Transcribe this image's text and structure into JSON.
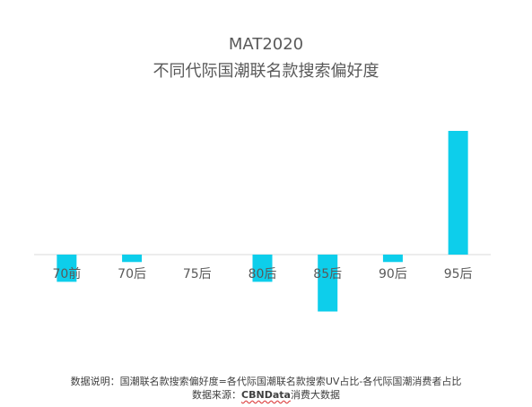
{
  "chart_data": {
    "type": "bar",
    "title_line1": "MAT2020",
    "title_line2": "不同代际国潮联名款搜索偏好度",
    "categories": [
      "70前",
      "70后",
      "75后",
      "80后",
      "85后",
      "90后",
      "95后"
    ],
    "values": [
      -0.11,
      -0.03,
      0,
      -0.11,
      -0.23,
      -0.03,
      0.5
    ],
    "ylim": [
      -0.25,
      0.55
    ],
    "grid": false,
    "legend": "none",
    "bar_color": "#0DCEEB",
    "axis_color": "#d9d9d9"
  },
  "footnote": {
    "line1": "数据说明：国潮联名款搜索偏好度=各代际国潮联名款搜索UV占比-各代际国潮消费者占比",
    "line2_prefix": "数据来源：",
    "line2_brand": "CBNData",
    "line2_suffix": "消费大数据"
  }
}
